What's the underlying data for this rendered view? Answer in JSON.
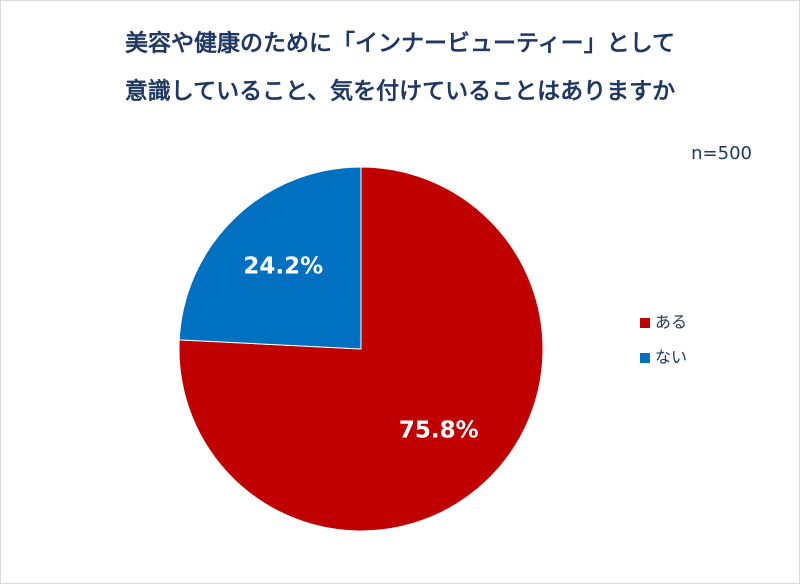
{
  "chart_data": {
    "type": "pie",
    "title": [
      "美容や健康のために「インナービューティー」として",
      "意識していること、気を付けていることはありますか"
    ],
    "annotation": "n=500",
    "categories": [
      "ある",
      "ない"
    ],
    "values": [
      75.8,
      24.2
    ],
    "value_labels": [
      "75.8%",
      "24.2%"
    ],
    "colors": [
      "#c00000",
      "#0070c0"
    ],
    "legend": "right"
  }
}
